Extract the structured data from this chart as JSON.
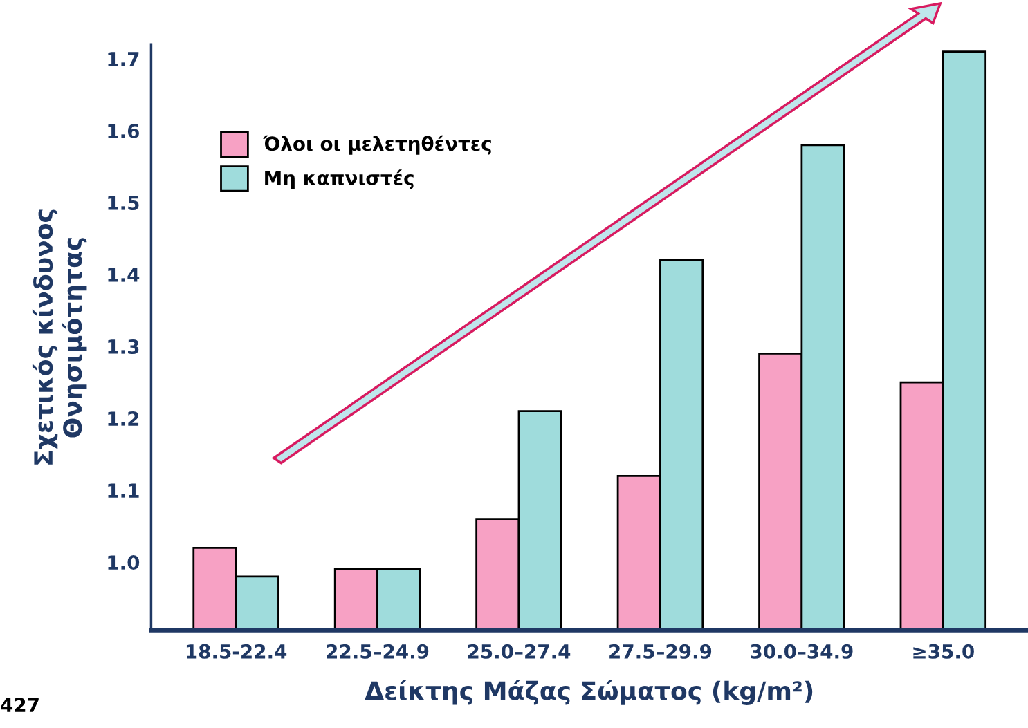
{
  "chart_data": {
    "type": "bar",
    "xlabel": "Δείκτης Μάζας Σώματος (kg/m²)",
    "ylabel": "Σχετικός κίνδυνος\nΘνησιμότητας",
    "categories": [
      "18.5-22.4",
      "22.5–24.9",
      "25.0–27.4",
      "27.5–29.9",
      "30.0–34.9",
      "≥35.0"
    ],
    "series": [
      {
        "name": "Όλοι οι μελετηθέντες",
        "color": "#f7a1c4",
        "values": [
          1.02,
          0.99,
          1.06,
          1.12,
          1.29,
          1.25
        ]
      },
      {
        "name": "Μη καπνιστές",
        "color": "#9fdcdc",
        "values": [
          0.98,
          0.99,
          1.21,
          1.42,
          1.58,
          1.71
        ]
      }
    ],
    "ylim": [
      0.905,
      1.72
    ],
    "yticks": [
      {
        "value": 1.0,
        "label": "1.0"
      },
      {
        "value": 1.1,
        "label": "1.1"
      },
      {
        "value": 1.2,
        "label": "1.2"
      },
      {
        "value": 1.3,
        "label": "1.3"
      },
      {
        "value": 1.4,
        "label": "1.4"
      },
      {
        "value": 1.5,
        "label": "1.5"
      },
      {
        "value": 1.6,
        "label": "1.6"
      },
      {
        "value": 1.7,
        "label": "1.7"
      }
    ],
    "grid": false,
    "legend": "top left",
    "annotations": [
      "427"
    ]
  }
}
